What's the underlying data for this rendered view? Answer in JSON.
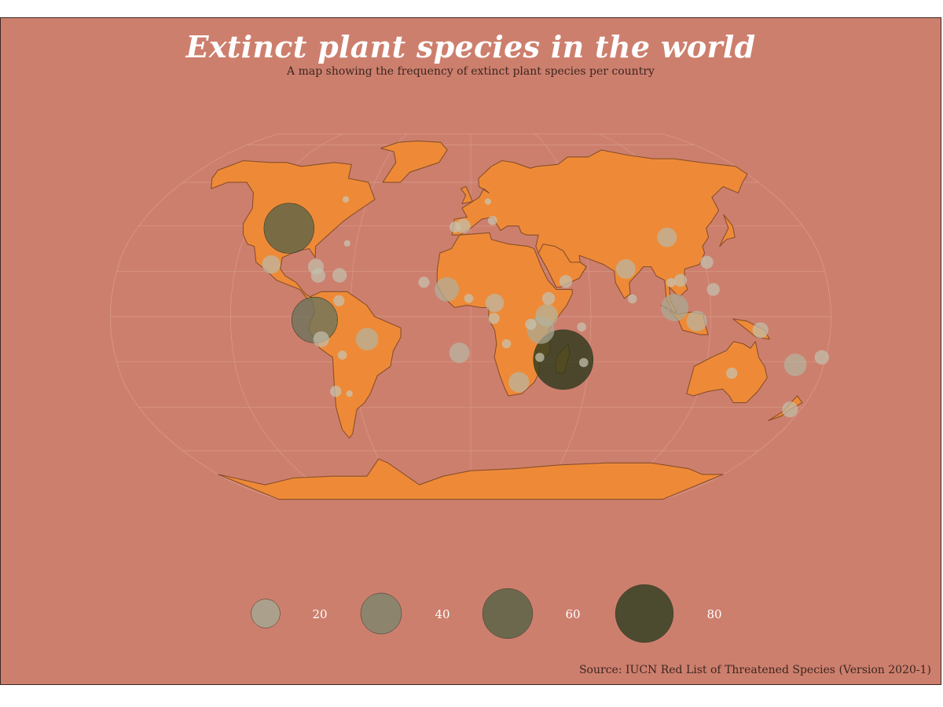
{
  "title": "Extinct plant species in the world",
  "subtitle": "A map showing the frequency of extinct plant species per country",
  "source": "Source: IUCN Red List of Threatened Species (Version 2020-1)",
  "colors": {
    "background": "#cd7f6d",
    "land": "#ee8a37",
    "border": "#8a4f2a",
    "graticule": "#d99a88",
    "bubble_low": "#c9c6b4",
    "bubble_high": "#2c3a1b"
  },
  "legend": {
    "entries": [
      {
        "label": "20",
        "value": 20
      },
      {
        "label": "40",
        "value": 40
      },
      {
        "label": "60",
        "value": 60
      },
      {
        "label": "80",
        "value": 80
      }
    ]
  },
  "chart_data": {
    "type": "bubble-map",
    "projection": "Robinson",
    "size_variable": "extinct plant species count",
    "points": [
      {
        "country": "United States",
        "lon": -98,
        "lat": 39,
        "value": 60
      },
      {
        "country": "Ecuador",
        "lon": -78,
        "lat": -1.5,
        "value": 50
      },
      {
        "country": "Madagascar",
        "lon": 47,
        "lat": -19,
        "value": 85
      },
      {
        "country": "Tanzania",
        "lon": 35,
        "lat": -6,
        "value": 18
      },
      {
        "country": "Kenya",
        "lon": 38,
        "lat": 0.5,
        "value": 12
      },
      {
        "country": "Cameroon",
        "lon": 12,
        "lat": 6,
        "value": 8
      },
      {
        "country": "Saint Helena",
        "lon": -5.7,
        "lat": -16,
        "value": 10
      },
      {
        "country": "Brazil",
        "lon": -52,
        "lat": -10,
        "value": 12
      },
      {
        "country": "Peru",
        "lon": -75,
        "lat": -10,
        "value": 6
      },
      {
        "country": "Mexico",
        "lon": -102,
        "lat": 23,
        "value": 8
      },
      {
        "country": "Cuba",
        "lon": -79,
        "lat": 22,
        "value": 6
      },
      {
        "country": "Jamaica",
        "lon": -77.3,
        "lat": 18.1,
        "value": 5
      },
      {
        "country": "Puerto Rico",
        "lon": -66.5,
        "lat": 18.2,
        "value": 5
      },
      {
        "country": "Venezuela",
        "lon": -66,
        "lat": 7,
        "value": 3
      },
      {
        "country": "Cape Verde",
        "lon": -23.6,
        "lat": 15.1,
        "value": 3
      },
      {
        "country": "Senegal/Guinea",
        "lon": -12,
        "lat": 12,
        "value": 14
      },
      {
        "country": "Ghana",
        "lon": -1,
        "lat": 8,
        "value": 2
      },
      {
        "country": "Spain",
        "lon": -4,
        "lat": 40,
        "value": 5
      },
      {
        "country": "Portugal",
        "lon": -8.5,
        "lat": 39.5,
        "value": 3
      },
      {
        "country": "India",
        "lon": 79,
        "lat": 21,
        "value": 9
      },
      {
        "country": "China",
        "lon": 104,
        "lat": 35,
        "value": 9
      },
      {
        "country": "Vietnam",
        "lon": 106,
        "lat": 16,
        "value": 4
      },
      {
        "country": "Malaysia",
        "lon": 102,
        "lat": 4,
        "value": 18
      },
      {
        "country": "Indonesia",
        "lon": 113,
        "lat": -2,
        "value": 10
      },
      {
        "country": "Philippines",
        "lon": 122,
        "lat": 12,
        "value": 4
      },
      {
        "country": "Taiwan",
        "lon": 121,
        "lat": 24,
        "value": 4
      },
      {
        "country": "Papua New Guinea",
        "lon": 145,
        "lat": -6,
        "value": 6
      },
      {
        "country": "Australia",
        "lon": 134,
        "lat": -25,
        "value": 3
      },
      {
        "country": "New Caledonia",
        "lon": 165.5,
        "lat": -21.3,
        "value": 12
      },
      {
        "country": "New Zealand",
        "lon": 174,
        "lat": -41,
        "value": 6
      },
      {
        "country": "South Africa",
        "lon": 25,
        "lat": -29,
        "value": 10
      },
      {
        "country": "Mauritius",
        "lon": 57.5,
        "lat": -20.3,
        "value": 2
      },
      {
        "country": "Seychelles",
        "lon": 55.5,
        "lat": -4.6,
        "value": 2
      },
      {
        "country": "Yemen",
        "lon": 48,
        "lat": 15.5,
        "value": 4
      },
      {
        "country": "Ethiopia",
        "lon": 39,
        "lat": 8,
        "value": 4
      },
      {
        "country": "Italy",
        "lon": 12,
        "lat": 42.5,
        "value": 2
      },
      {
        "country": "Germany",
        "lon": 10,
        "lat": 51,
        "value": 1
      },
      {
        "country": "Angola",
        "lon": 18,
        "lat": -12,
        "value": 2
      },
      {
        "country": "Mozambique",
        "lon": 35,
        "lat": -18,
        "value": 2
      },
      {
        "country": "Chile",
        "lon": -71,
        "lat": -33,
        "value": 3
      },
      {
        "country": "Argentina",
        "lon": -64,
        "lat": -34,
        "value": 1
      },
      {
        "country": "Bolivia",
        "lon": -65,
        "lat": -17,
        "value": 2
      },
      {
        "country": "Sri Lanka",
        "lon": 81,
        "lat": 7.8,
        "value": 2
      },
      {
        "country": "Bermuda",
        "lon": -64.8,
        "lat": 32.3,
        "value": 1
      },
      {
        "country": "Canada",
        "lon": -73,
        "lat": 52,
        "value": 1
      },
      {
        "country": "Gabon",
        "lon": 11.6,
        "lat": -0.8,
        "value": 3
      },
      {
        "country": "Burundi",
        "lon": 30,
        "lat": -3.4,
        "value": 3
      },
      {
        "country": "Thailand",
        "lon": 101,
        "lat": 15,
        "value": 2
      },
      {
        "country": "Fiji",
        "lon": 178,
        "lat": -18,
        "value": 5
      }
    ]
  }
}
